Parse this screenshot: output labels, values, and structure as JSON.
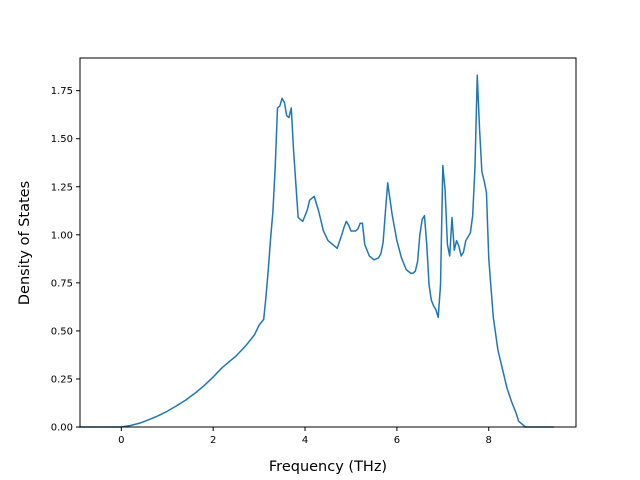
{
  "chart_data": {
    "type": "line",
    "title": "",
    "xlabel": "Frequency (THz)",
    "ylabel": "Density of States",
    "xlim": [
      -0.9,
      9.9
    ],
    "ylim": [
      0.0,
      1.92
    ],
    "xticks": [
      0,
      2,
      4,
      6,
      8
    ],
    "xtick_labels": [
      "0",
      "2",
      "4",
      "6",
      "8"
    ],
    "yticks": [
      0.0,
      0.25,
      0.5,
      0.75,
      1.0,
      1.25,
      1.5,
      1.75
    ],
    "ytick_labels": [
      "0.00",
      "0.25",
      "0.50",
      "0.75",
      "1.00",
      "1.25",
      "1.50",
      "1.75"
    ],
    "grid": false,
    "legend": "none",
    "color": "#1f77b4",
    "series": [
      {
        "x": [
          -0.9,
          0.0,
          0.2,
          0.4,
          0.6,
          0.8,
          1.0,
          1.2,
          1.4,
          1.6,
          1.8,
          2.0,
          2.2,
          2.3,
          2.5,
          2.7,
          2.9,
          3.0,
          3.1,
          3.15,
          3.2,
          3.25,
          3.3,
          3.35,
          3.4,
          3.45,
          3.5,
          3.55,
          3.6,
          3.65,
          3.7,
          3.75,
          3.85,
          3.95,
          4.05,
          4.1,
          4.2,
          4.3,
          4.4,
          4.5,
          4.6,
          4.7,
          4.8,
          4.85,
          4.9,
          4.95,
          5.0,
          5.1,
          5.15,
          5.2,
          5.25,
          5.3,
          5.4,
          5.5,
          5.6,
          5.65,
          5.7,
          5.75,
          5.8,
          5.9,
          6.0,
          6.1,
          6.2,
          6.3,
          6.35,
          6.4,
          6.45,
          6.5,
          6.55,
          6.6,
          6.65,
          6.7,
          6.75,
          6.8,
          6.85,
          6.9,
          6.95,
          7.0,
          7.05,
          7.1,
          7.15,
          7.2,
          7.25,
          7.3,
          7.35,
          7.4,
          7.45,
          7.5,
          7.55,
          7.6,
          7.65,
          7.7,
          7.75,
          7.8,
          7.85,
          7.9,
          7.95,
          8.0,
          8.05,
          8.1,
          8.2,
          8.3,
          8.4,
          8.5,
          8.6,
          8.65,
          8.8,
          9.0,
          9.4
        ],
        "y": [
          0.0,
          0.0,
          0.008,
          0.02,
          0.038,
          0.058,
          0.082,
          0.11,
          0.14,
          0.175,
          0.215,
          0.26,
          0.31,
          0.33,
          0.37,
          0.42,
          0.48,
          0.53,
          0.56,
          0.68,
          0.82,
          0.98,
          1.12,
          1.35,
          1.66,
          1.67,
          1.71,
          1.69,
          1.62,
          1.61,
          1.66,
          1.44,
          1.09,
          1.07,
          1.13,
          1.18,
          1.2,
          1.12,
          1.02,
          0.97,
          0.95,
          0.93,
          1.0,
          1.04,
          1.07,
          1.05,
          1.02,
          1.02,
          1.03,
          1.06,
          1.06,
          0.95,
          0.89,
          0.87,
          0.88,
          0.9,
          0.96,
          1.12,
          1.27,
          1.1,
          0.97,
          0.88,
          0.82,
          0.8,
          0.8,
          0.81,
          0.86,
          1.0,
          1.08,
          1.1,
          0.95,
          0.74,
          0.66,
          0.63,
          0.61,
          0.57,
          0.74,
          1.36,
          1.23,
          0.95,
          0.89,
          1.09,
          0.92,
          0.97,
          0.94,
          0.89,
          0.91,
          0.97,
          0.99,
          1.01,
          1.1,
          1.35,
          1.83,
          1.55,
          1.33,
          1.28,
          1.22,
          0.88,
          0.72,
          0.57,
          0.4,
          0.3,
          0.2,
          0.13,
          0.07,
          0.03,
          0.0,
          0.0,
          0.0
        ]
      }
    ]
  }
}
